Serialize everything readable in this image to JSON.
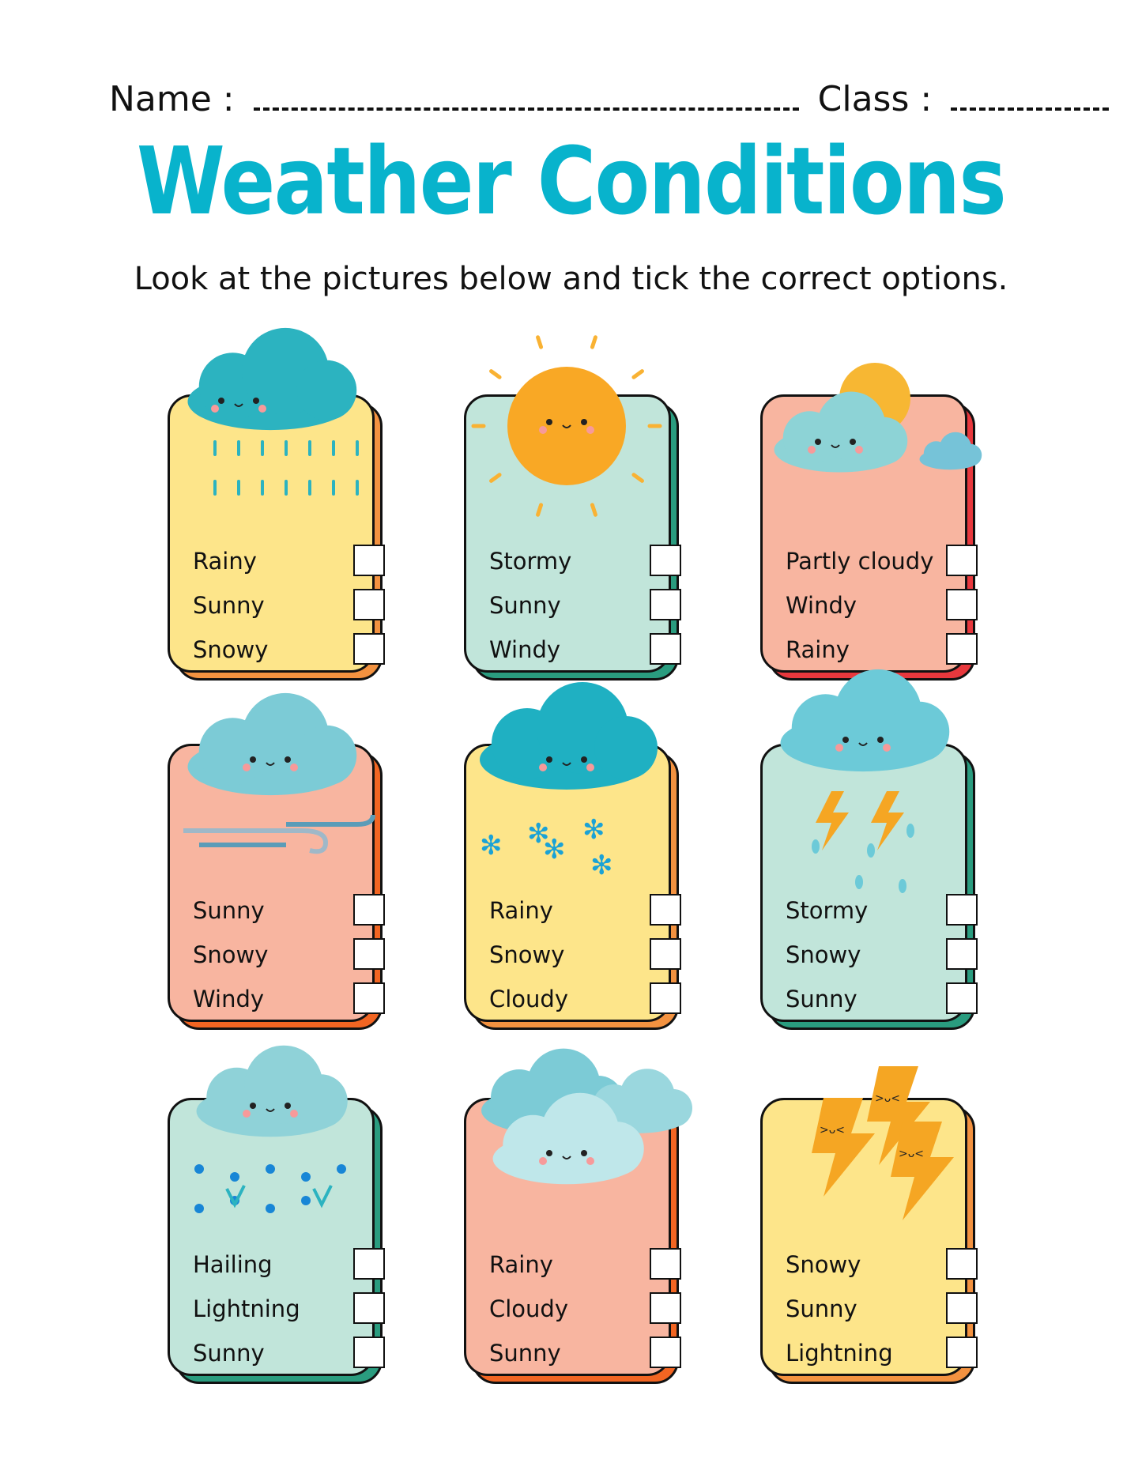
{
  "header": {
    "name_label": "Name :",
    "class_label": "Class :"
  },
  "title": "Weather Conditions",
  "instructions": "Look at the pictures below and tick the correct options.",
  "colors": {
    "title": "#08b3cc",
    "yellow": "#fde58a",
    "mint": "#c1e5da",
    "salmon": "#f8b5a0",
    "orange": "#f39240",
    "teal": "#2a9c7f",
    "red": "#e8383d",
    "orange_red": "#f26522"
  },
  "cards": [
    {
      "picture": "rain-cloud-icon",
      "bg": "#fde58a",
      "shadow": "#f39240",
      "options": [
        {
          "label": "Rainy",
          "checked": false
        },
        {
          "label": "Sunny",
          "checked": false
        },
        {
          "label": "Snowy",
          "checked": false
        }
      ]
    },
    {
      "picture": "sun-icon",
      "bg": "#c1e5da",
      "shadow": "#2a9c7f",
      "options": [
        {
          "label": "Stormy",
          "checked": false
        },
        {
          "label": "Sunny",
          "checked": false
        },
        {
          "label": "Windy",
          "checked": false
        }
      ]
    },
    {
      "picture": "partly-cloudy-icon",
      "bg": "#f8b5a0",
      "shadow": "#e8383d",
      "options": [
        {
          "label": "Partly cloudy",
          "checked": false
        },
        {
          "label": "Windy",
          "checked": false
        },
        {
          "label": "Rainy",
          "checked": false
        }
      ]
    },
    {
      "picture": "windy-cloud-icon",
      "bg": "#f8b5a0",
      "shadow": "#f26522",
      "options": [
        {
          "label": "Sunny",
          "checked": false
        },
        {
          "label": "Snowy",
          "checked": false
        },
        {
          "label": "Windy",
          "checked": false
        }
      ]
    },
    {
      "picture": "snow-cloud-icon",
      "bg": "#fde58a",
      "shadow": "#f39240",
      "options": [
        {
          "label": "Rainy",
          "checked": false
        },
        {
          "label": "Snowy",
          "checked": false
        },
        {
          "label": "Cloudy",
          "checked": false
        }
      ]
    },
    {
      "picture": "storm-cloud-icon",
      "bg": "#c1e5da",
      "shadow": "#2a9c7f",
      "options": [
        {
          "label": "Stormy",
          "checked": false
        },
        {
          "label": "Snowy",
          "checked": false
        },
        {
          "label": "Sunny",
          "checked": false
        }
      ]
    },
    {
      "picture": "hail-cloud-icon",
      "bg": "#c1e5da",
      "shadow": "#2a9c7f",
      "options": [
        {
          "label": "Hailing",
          "checked": false
        },
        {
          "label": "Lightning",
          "checked": false
        },
        {
          "label": "Sunny",
          "checked": false
        }
      ]
    },
    {
      "picture": "clouds-icon",
      "bg": "#f8b5a0",
      "shadow": "#f26522",
      "options": [
        {
          "label": "Rainy",
          "checked": false
        },
        {
          "label": "Cloudy",
          "checked": false
        },
        {
          "label": "Sunny",
          "checked": false
        }
      ]
    },
    {
      "picture": "lightning-icon",
      "bg": "#fde58a",
      "shadow": "#f39240",
      "options": [
        {
          "label": "Snowy",
          "checked": false
        },
        {
          "label": "Sunny",
          "checked": false
        },
        {
          "label": "Lightning",
          "checked": false
        }
      ]
    }
  ]
}
